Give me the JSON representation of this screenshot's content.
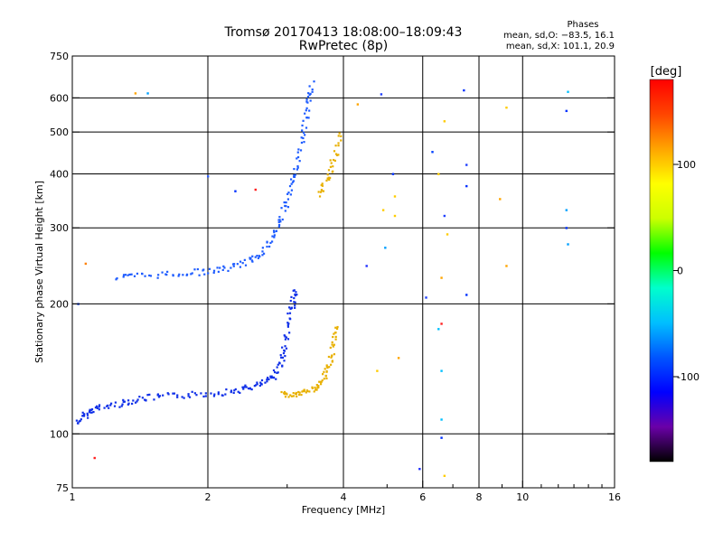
{
  "chart_data": {
    "type": "scatter",
    "title": "Tromsø 20170413 18:08:00–18:09:43",
    "subtitle": "RwPretec (8p)",
    "xlabel": "Frequency [MHz]",
    "ylabel": "Stationary phase Virtual Height [km]",
    "x_scale": "log",
    "y_scale": "log",
    "xlim": [
      1,
      16
    ],
    "ylim": [
      75,
      750
    ],
    "x_ticks": [
      1,
      2,
      4,
      6,
      8,
      10,
      16
    ],
    "x_minor_ticks": [
      3,
      5,
      7,
      9,
      11,
      12,
      13,
      14,
      15
    ],
    "y_ticks": [
      75,
      100,
      200,
      300,
      400,
      500,
      600,
      750
    ],
    "grid": true,
    "phase_stats": {
      "heading": "Phases",
      "line1": "mean, sd,O: −83.5, 16.1",
      "line2": "mean, sd,X: 101.1, 20.9"
    },
    "colorbar": {
      "unit": "[deg]",
      "range": [
        -180,
        180
      ],
      "ticks": [
        100,
        0,
        -100
      ],
      "colormap": [
        "#000000",
        "#6a00a8",
        "#0000ff",
        "#0055ff",
        "#00bfff",
        "#00ffcc",
        "#00ff00",
        "#ccff00",
        "#ffff00",
        "#ffa500",
        "#ff4500",
        "#ff0000"
      ]
    },
    "traces": [
      {
        "kind": "O-lower",
        "phase": -100,
        "color": "#1030e8",
        "points": [
          [
            1.03,
            106
          ],
          [
            1.06,
            110
          ],
          [
            1.1,
            113
          ],
          [
            1.15,
            115
          ],
          [
            1.25,
            117
          ],
          [
            1.35,
            119
          ],
          [
            1.45,
            121
          ],
          [
            1.6,
            122
          ],
          [
            1.8,
            123
          ],
          [
            2.0,
            124
          ],
          [
            2.2,
            125
          ],
          [
            2.4,
            127
          ],
          [
            2.55,
            129
          ],
          [
            2.7,
            132
          ],
          [
            2.8,
            136
          ],
          [
            2.9,
            145
          ],
          [
            2.95,
            155
          ],
          [
            3.0,
            170
          ],
          [
            3.05,
            190
          ],
          [
            3.1,
            205
          ],
          [
            3.15,
            215
          ]
        ]
      },
      {
        "kind": "X-lower",
        "phase": 120,
        "color": "#e8b000",
        "points": [
          [
            2.95,
            124
          ],
          [
            3.05,
            123
          ],
          [
            3.2,
            124
          ],
          [
            3.35,
            126
          ],
          [
            3.5,
            128
          ],
          [
            3.6,
            133
          ],
          [
            3.7,
            140
          ],
          [
            3.75,
            150
          ],
          [
            3.8,
            165
          ],
          [
            3.85,
            180
          ]
        ]
      },
      {
        "kind": "O-upper",
        "phase": -95,
        "color": "#1e5cff",
        "points": [
          [
            1.25,
            230
          ],
          [
            1.4,
            232
          ],
          [
            1.6,
            234
          ],
          [
            1.8,
            236
          ],
          [
            2.0,
            238
          ],
          [
            2.2,
            241
          ],
          [
            2.4,
            248
          ],
          [
            2.55,
            256
          ],
          [
            2.7,
            270
          ],
          [
            2.8,
            290
          ],
          [
            2.9,
            315
          ],
          [
            3.0,
            345
          ],
          [
            3.1,
            385
          ],
          [
            3.15,
            420
          ],
          [
            3.25,
            480
          ],
          [
            3.3,
            540
          ],
          [
            3.35,
            600
          ],
          [
            3.4,
            650
          ]
        ]
      },
      {
        "kind": "X-upper",
        "phase": 120,
        "color": "#e8b000",
        "points": [
          [
            3.55,
            360
          ],
          [
            3.65,
            380
          ],
          [
            3.75,
            410
          ],
          [
            3.85,
            450
          ],
          [
            3.95,
            500
          ]
        ]
      }
    ],
    "scattered_points": [
      [
        1.03,
        200,
        "#2050ff"
      ],
      [
        1.07,
        248,
        "#ff8000"
      ],
      [
        1.12,
        88,
        "#ff2020"
      ],
      [
        1.38,
        615,
        "#ffa500"
      ],
      [
        1.47,
        615,
        "#00a0ff"
      ],
      [
        2.3,
        365,
        "#0030ff"
      ],
      [
        2.55,
        368,
        "#ff2020"
      ],
      [
        2.0,
        395,
        "#3060ff"
      ],
      [
        4.3,
        580,
        "#ffa500"
      ],
      [
        4.85,
        612,
        "#2040ff"
      ],
      [
        4.9,
        330,
        "#ffcc00"
      ],
      [
        4.95,
        270,
        "#00a0ff"
      ],
      [
        5.2,
        355,
        "#ffcc00"
      ],
      [
        5.2,
        320,
        "#ffcc00"
      ],
      [
        5.3,
        150,
        "#ffa500"
      ],
      [
        4.5,
        245,
        "#2030ff"
      ],
      [
        5.15,
        400,
        "#0030ff"
      ],
      [
        6.1,
        207,
        "#2040ff"
      ],
      [
        5.9,
        83,
        "#2030ff"
      ],
      [
        6.3,
        450,
        "#0040ff"
      ],
      [
        6.5,
        400,
        "#ffcc00"
      ],
      [
        6.7,
        320,
        "#2040ff"
      ],
      [
        6.5,
        175,
        "#00c0ff"
      ],
      [
        6.6,
        140,
        "#00c0ff"
      ],
      [
        6.6,
        108,
        "#00c0ff"
      ],
      [
        6.6,
        98,
        "#0030ff"
      ],
      [
        6.7,
        530,
        "#ffcc00"
      ],
      [
        6.8,
        290,
        "#ffcc00"
      ],
      [
        7.4,
        625,
        "#0030ff"
      ],
      [
        7.5,
        420,
        "#2040ff"
      ],
      [
        7.5,
        375,
        "#0030ff"
      ],
      [
        7.5,
        210,
        "#0030ff"
      ],
      [
        8.9,
        350,
        "#ffa500"
      ],
      [
        9.2,
        570,
        "#ffcc00"
      ],
      [
        9.2,
        245,
        "#ffa500"
      ],
      [
        12.6,
        620,
        "#00c0ff"
      ],
      [
        12.5,
        560,
        "#0030ff"
      ],
      [
        12.5,
        330,
        "#00a0ff"
      ],
      [
        12.5,
        300,
        "#0030ff"
      ],
      [
        12.6,
        275,
        "#00a0ff"
      ],
      [
        6.7,
        80,
        "#ffcc00"
      ],
      [
        4.75,
        140,
        "#ffcc00"
      ],
      [
        6.6,
        230,
        "#ffa500"
      ],
      [
        6.6,
        180,
        "#ff2020"
      ]
    ]
  }
}
